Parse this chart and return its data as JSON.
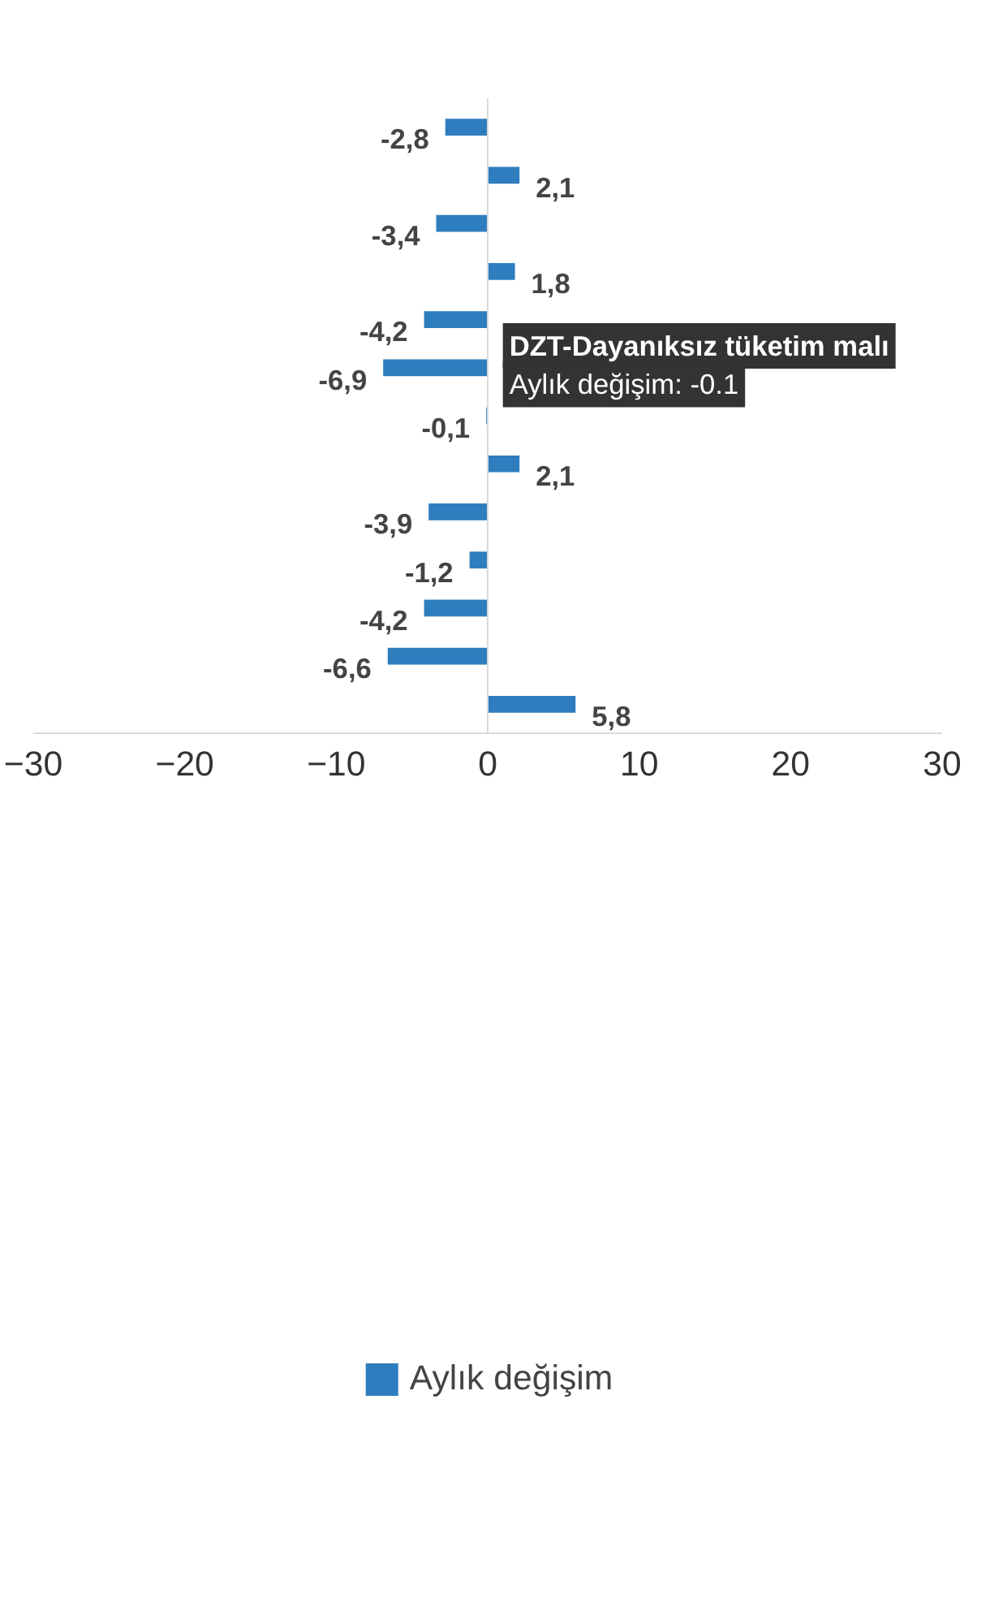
{
  "chart_data": {
    "type": "bar",
    "orientation": "horizontal",
    "categories": [
      null,
      null,
      null,
      null,
      null,
      null,
      null,
      null,
      null,
      null,
      null,
      null,
      null
    ],
    "series": [
      {
        "name": "Aylık değişim",
        "color": "#2e7ebf",
        "values": [
          -2.8,
          2.1,
          -3.4,
          1.8,
          -4.2,
          -6.9,
          -0.1,
          2.1,
          -3.9,
          -1.2,
          -4.2,
          -6.6,
          5.8
        ],
        "value_labels": [
          "-2,8",
          "2,1",
          "-3,4",
          "1,8",
          "-4,2",
          "-6,9",
          "-0,1",
          "2,1",
          "-3,9",
          "-1,2",
          "-4,2",
          "-6,6",
          "5,8"
        ]
      }
    ],
    "xlim": [
      -30,
      30
    ],
    "xticks": [
      -30,
      -20,
      -10,
      0,
      10,
      20,
      30
    ],
    "tick_labels": "x",
    "legend": "bottom",
    "annotations": [
      "DZT-Dayanıksız tüketim malı",
      "Aylık değişim: -0.1"
    ]
  }
}
